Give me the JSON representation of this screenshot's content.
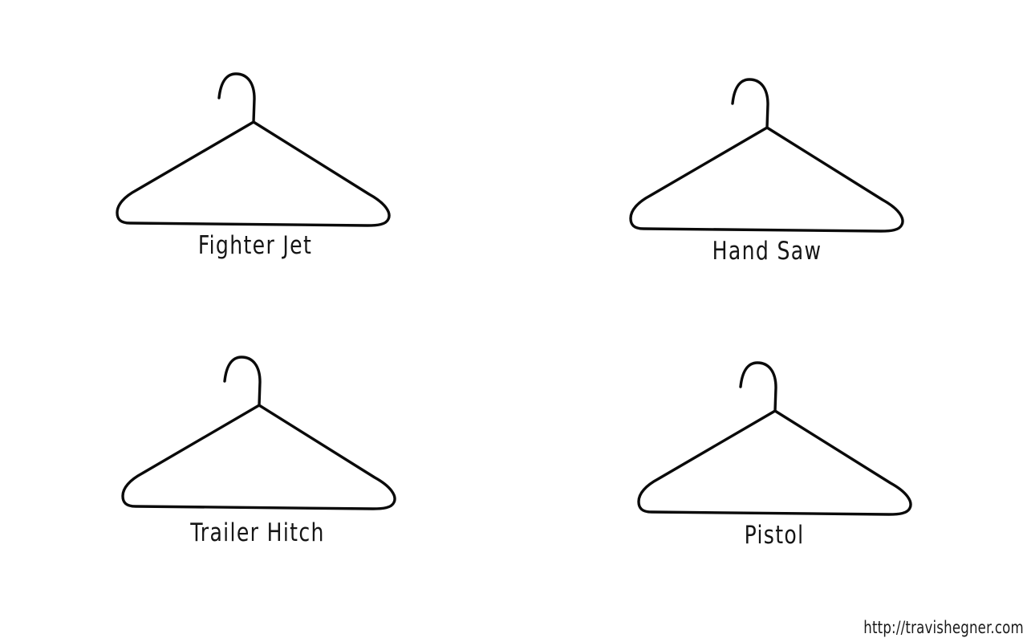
{
  "hangers": [
    {
      "label": "Fighter Jet"
    },
    {
      "label": "Hand Saw"
    },
    {
      "label": "Trailer Hitch"
    },
    {
      "label": "Pistol"
    }
  ],
  "footer": {
    "credit": "http://travishegner.com"
  }
}
